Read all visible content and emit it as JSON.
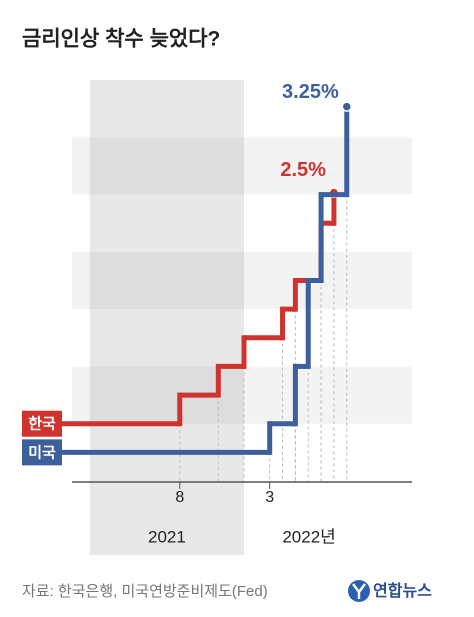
{
  "chart_data": {
    "type": "step",
    "title": "금리인상 착수 늦었다?",
    "source": "자료: 한국은행, 미국연방준비제도(Fed)",
    "logo": "연합뉴스",
    "ylim": [
      0,
      3.5
    ],
    "xlim": [
      "2020-12",
      "2023-02"
    ],
    "xticks": [
      {
        "value": "2021-08",
        "label": "8"
      },
      {
        "value": "2022-03",
        "label": "3"
      }
    ],
    "year_bands": [
      {
        "label": "2021",
        "from": "2021-01",
        "to": "2022-01",
        "shaded": true
      },
      {
        "label": "2022년",
        "from": "2022-01",
        "to": "2023-01",
        "shaded": false
      }
    ],
    "series": [
      {
        "name": "한국",
        "color": "#d0332e",
        "x": [
          "2020-12",
          "2021-08",
          "2021-11",
          "2022-01",
          "2022-04",
          "2022-05",
          "2022-07",
          "2022-08"
        ],
        "values": [
          0.5,
          0.75,
          1,
          1.25,
          1.5,
          1.75,
          2.25,
          2.5
        ],
        "value_labels": [
          null,
          null,
          null,
          null,
          null,
          null,
          null,
          "2.5%"
        ]
      },
      {
        "name": "미국",
        "color": "#3d5f9c",
        "x": [
          "2020-12",
          "2022-03",
          "2022-05",
          "2022-06",
          "2022-07",
          "2022-09"
        ],
        "values": [
          0.25,
          0.5,
          1,
          1.75,
          2.5,
          3.25
        ],
        "value_labels": [
          null,
          null,
          null,
          null,
          null,
          "3.25%"
        ]
      }
    ]
  }
}
